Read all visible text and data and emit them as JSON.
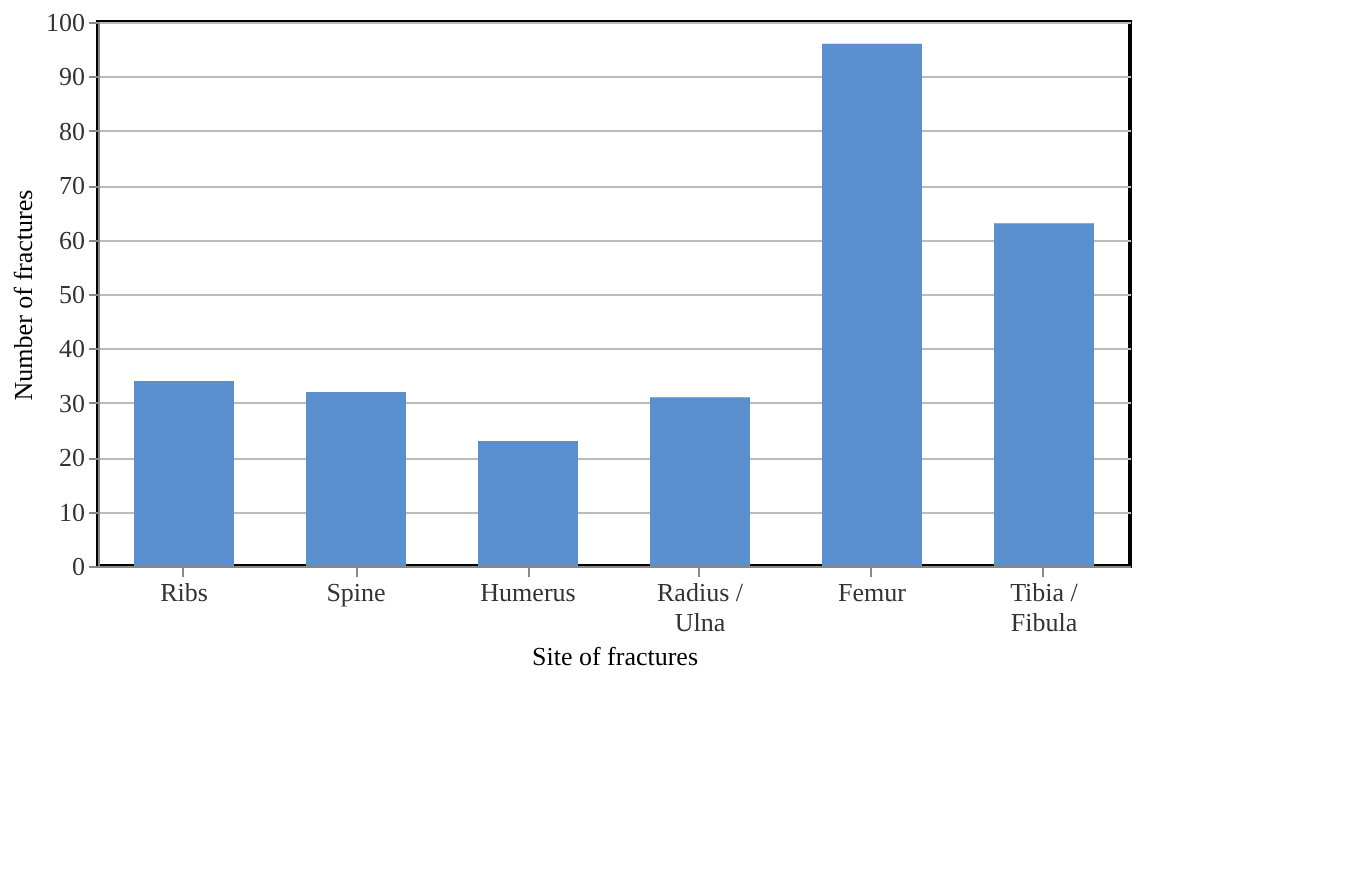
{
  "chart_data": {
    "type": "bar",
    "xlabel": "Site of fractures",
    "ylabel": "Number of fractures",
    "categories": [
      "Ribs",
      "Spine",
      "Humerus",
      "Radius / Ulna",
      "Femur",
      "Tibia / Fibula"
    ],
    "values": [
      34,
      32,
      23,
      31,
      96,
      63
    ],
    "color": "#5b8fd0",
    "ylim": [
      0,
      100
    ],
    "yticks": [
      0,
      10,
      20,
      30,
      40,
      50,
      60,
      70,
      80,
      90,
      100
    ],
    "grid": "y"
  }
}
